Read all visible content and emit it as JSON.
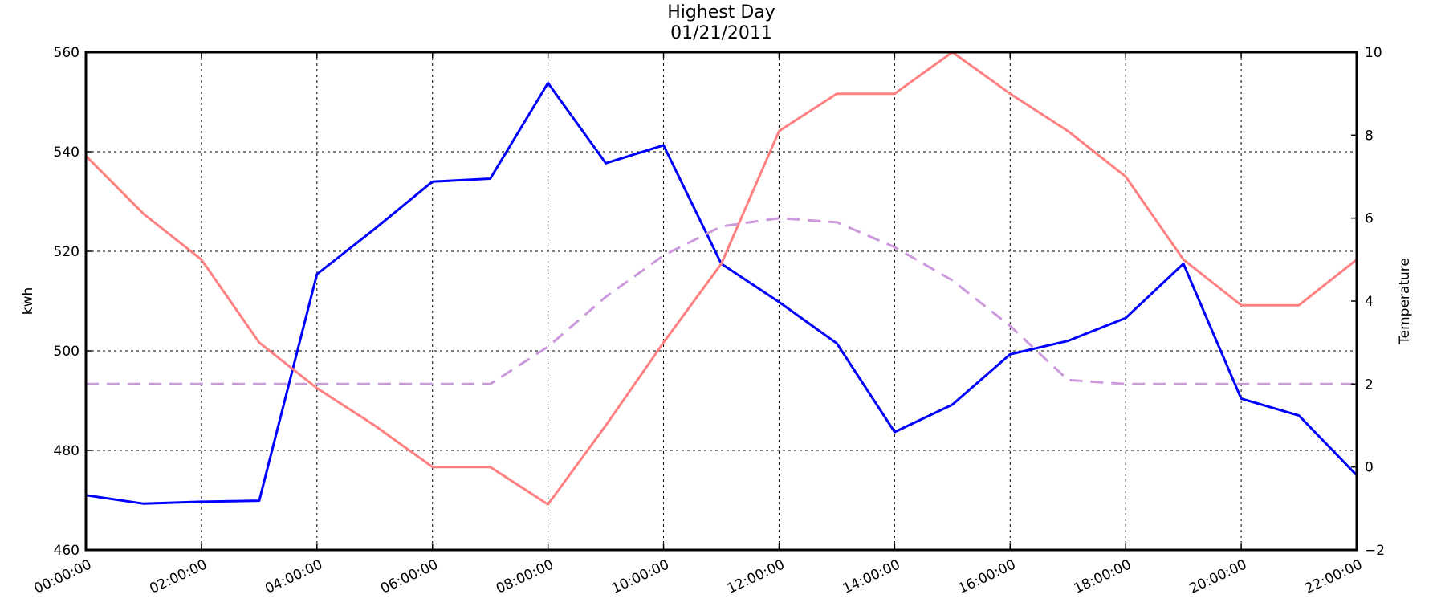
{
  "chart_data": {
    "type": "line",
    "title": "Highest Day",
    "subtitle": "01/21/2011",
    "ylabel": "kwh",
    "y2label": "Temperature",
    "ylim": [
      460,
      560
    ],
    "y2lim": [
      -2,
      10
    ],
    "grid": true,
    "x_ticks": [
      "00:00:00",
      "02:00:00",
      "04:00:00",
      "06:00:00",
      "08:00:00",
      "10:00:00",
      "12:00:00",
      "14:00:00",
      "16:00:00",
      "18:00:00",
      "20:00:00",
      "22:00:00"
    ],
    "y_ticks": [
      "460",
      "480",
      "500",
      "520",
      "540",
      "560"
    ],
    "y2_ticks": [
      "−2",
      "0",
      "2",
      "4",
      "6",
      "8",
      "10"
    ],
    "x_hours": [
      0,
      1,
      2,
      3,
      4,
      5,
      6,
      7,
      8,
      9,
      10,
      11,
      12,
      13,
      14,
      15,
      16,
      17,
      18,
      19,
      20,
      21,
      22
    ],
    "series": [
      {
        "axis": "left",
        "color": "#0000ff",
        "style": "solid",
        "values": [
          471,
          469.3,
          469.7,
          469.9,
          515.4,
          524.5,
          534,
          534.6,
          553.8,
          537.7,
          541.3,
          517.5,
          509.8,
          501.5,
          483.7,
          489.2,
          499.3,
          502,
          506.6,
          517.5,
          490.4,
          487,
          475
        ]
      },
      {
        "axis": "right",
        "color": "#ff8080",
        "style": "solid",
        "values": [
          7.5,
          6.1,
          5.0,
          3.0,
          1.9,
          1.0,
          0.0,
          0.0,
          -0.9,
          1.0,
          3.0,
          4.9,
          8.1,
          9.0,
          9.0,
          10.0,
          9.0,
          8.1,
          7.0,
          5.0,
          3.9,
          3.9,
          5.0
        ]
      },
      {
        "axis": "right",
        "color": "#cc99dd",
        "style": "dashed",
        "values": [
          2.0,
          2.0,
          2.0,
          2.0,
          2.0,
          2.0,
          2.0,
          2.0,
          2.9,
          4.1,
          5.1,
          5.8,
          6.0,
          5.9,
          5.3,
          4.5,
          3.4,
          2.1,
          2.0,
          2.0,
          2.0,
          2.0,
          2.0
        ]
      }
    ]
  }
}
